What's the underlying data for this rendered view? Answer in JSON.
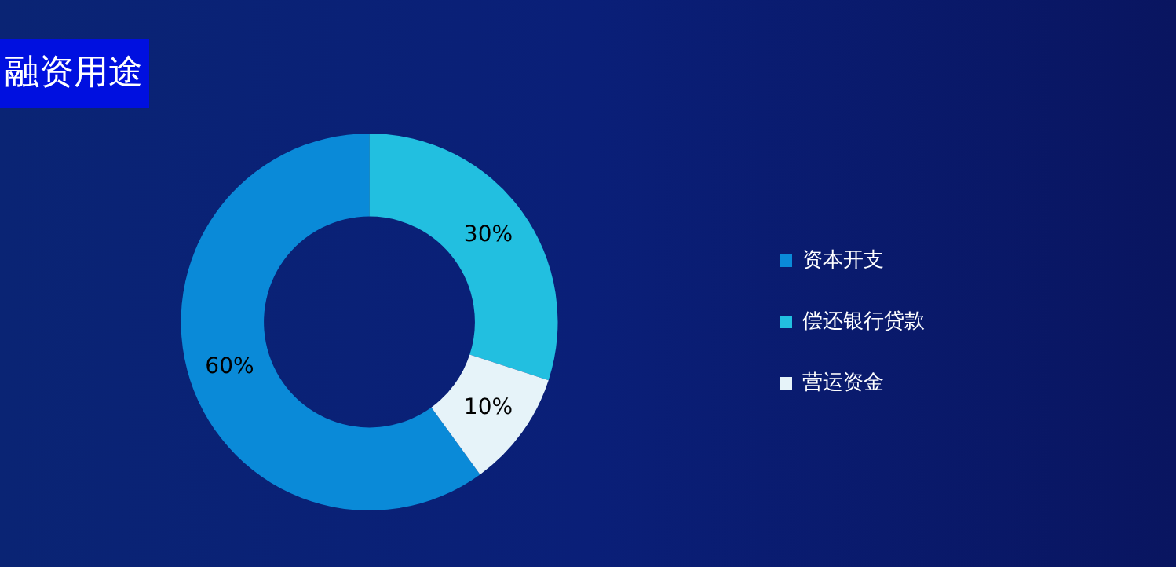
{
  "chart_data": {
    "type": "donut",
    "title": "融资用途",
    "categories": [
      "资本开支",
      "偿还银行贷款",
      "营运资金"
    ],
    "values": [
      60,
      30,
      10
    ],
    "colors": [
      "#0a8ad8",
      "#22bfe0",
      "#e6f3f9"
    ],
    "value_labels": [
      "60%",
      "30%",
      "10%"
    ],
    "legend": "right"
  }
}
